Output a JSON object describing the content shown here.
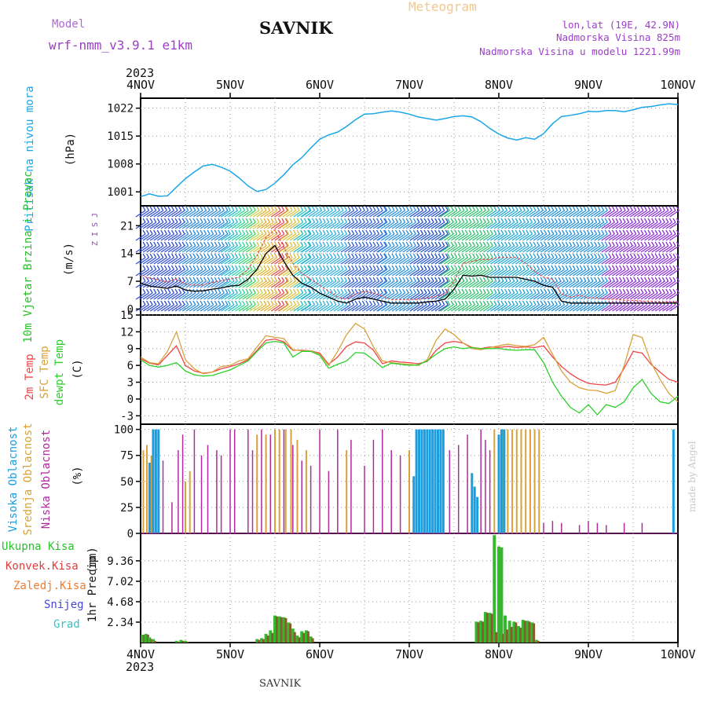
{
  "header": {
    "model_label": "Model",
    "model_name": "wrf-nmm_v3.9.1 e1km",
    "station": "SAVNIK",
    "product": "Meteogram",
    "coords": "lon,lat (19E, 42.9N)",
    "elevation": "Nadmorska Visina 825m",
    "model_elevation": "Nadmorska Visina u modelu 1221.99m",
    "footer_station": "SAVNIK",
    "credit": "made by Angel"
  },
  "colors": {
    "pressure": "#1aa7e8",
    "temp2m": "#ef4444",
    "sfc_temp": "#d9a13a",
    "dewpt": "#2bd12b",
    "cloud_high": "#1b9ee0",
    "cloud_mid": "#d9a13a",
    "cloud_low": "#b12aa0",
    "precip_total": "#35b72e",
    "precip_conv": "#e23d3d",
    "precip_strat": "#ee7b2f",
    "snow": "#4747d8",
    "hail": "#33c4c4",
    "wind_speed_line": "#000000",
    "wind_gust": "#e05050"
  },
  "time_axis": {
    "year": "2023",
    "days": [
      "4NOV",
      "5NOV",
      "6NOV",
      "7NOV",
      "8NOV",
      "9NOV",
      "10NOV"
    ]
  },
  "chart_data": [
    {
      "type": "line",
      "id": "pressure",
      "ylabel": "Pritisak na nivou mora",
      "unit": "(hPa)",
      "yticks": [
        1001,
        1008,
        1015,
        1022
      ],
      "ylim": [
        997.5,
        1024.5
      ],
      "x": [
        0,
        0.1,
        0.2,
        0.3,
        0.4,
        0.5,
        0.6,
        0.7,
        0.8,
        0.9,
        1.0,
        1.1,
        1.2,
        1.3,
        1.4,
        1.5,
        1.6,
        1.7,
        1.8,
        1.9,
        2.0,
        2.1,
        2.2,
        2.3,
        2.4,
        2.5,
        2.6,
        2.7,
        2.8,
        2.9,
        3.0,
        3.1,
        3.2,
        3.3,
        3.4,
        3.5,
        3.6,
        3.7,
        3.8,
        3.9,
        4.0,
        4.1,
        4.2,
        4.3,
        4.4,
        4.5,
        4.6,
        4.7,
        4.8,
        4.9,
        5.0,
        5.1,
        5.2,
        5.3,
        5.4,
        5.5,
        5.6,
        5.7,
        5.8,
        5.9,
        6.0
      ],
      "values": [
        999.8,
        1000.5,
        999.9,
        1000.0,
        1002.2,
        1004.3,
        1006.0,
        1007.5,
        1007.9,
        1007.2,
        1006.2,
        1004.5,
        1002.5,
        1001.1,
        1001.6,
        1003.2,
        1005.3,
        1007.8,
        1009.6,
        1012.0,
        1014.2,
        1015.3,
        1016.0,
        1017.4,
        1019.1,
        1020.5,
        1020.6,
        1021.0,
        1021.3,
        1021.0,
        1020.5,
        1019.8,
        1019.4,
        1019.0,
        1019.4,
        1019.9,
        1020.1,
        1019.8,
        1018.6,
        1016.9,
        1015.5,
        1014.5,
        1014.0,
        1014.6,
        1014.2,
        1015.6,
        1018.1,
        1019.9,
        1020.2,
        1020.6,
        1021.2,
        1021.1,
        1021.4,
        1021.4,
        1021.1,
        1021.6,
        1022.2,
        1022.4,
        1022.8,
        1023.1,
        1022.9
      ]
    },
    {
      "type": "line",
      "id": "wind",
      "ylabel": "10m Vjetar Brzina i Pravac",
      "unit": "(m/s)",
      "direction_legend": "Z I S J",
      "yticks": [
        0,
        7,
        14,
        21
      ],
      "ylim": [
        -1.5,
        26
      ],
      "x": [
        0,
        0.1,
        0.2,
        0.3,
        0.4,
        0.5,
        0.6,
        0.7,
        0.8,
        0.9,
        1.0,
        1.1,
        1.2,
        1.3,
        1.4,
        1.5,
        1.6,
        1.7,
        1.8,
        1.9,
        2.0,
        2.1,
        2.2,
        2.3,
        2.4,
        2.5,
        2.6,
        2.7,
        2.8,
        2.9,
        3.0,
        3.1,
        3.2,
        3.3,
        3.4,
        3.5,
        3.6,
        3.7,
        3.8,
        3.9,
        4.0,
        4.1,
        4.2,
        4.3,
        4.4,
        4.5,
        4.6,
        4.7,
        4.8,
        4.9,
        5.0,
        5.1,
        5.2,
        5.3,
        5.4,
        5.5,
        5.6,
        5.7,
        5.8,
        5.9,
        6.0
      ],
      "speed": [
        6.5,
        5.8,
        5.5,
        5.2,
        5.8,
        4.8,
        4.5,
        4.6,
        5.0,
        5.3,
        5.8,
        6.0,
        7.5,
        10.0,
        14.0,
        16.0,
        12.0,
        8.5,
        6.5,
        5.5,
        4.0,
        3.0,
        2.0,
        1.5,
        2.5,
        3.0,
        2.5,
        2.0,
        1.5,
        1.5,
        1.5,
        1.5,
        1.8,
        2.0,
        2.5,
        5.0,
        8.5,
        8.3,
        8.5,
        8.0,
        8.0,
        8.0,
        8.0,
        7.5,
        7.0,
        6.0,
        5.5,
        2.0,
        1.5,
        1.5,
        1.5,
        1.5,
        1.5,
        1.5,
        1.5,
        1.5,
        1.5,
        1.5,
        1.5,
        1.5,
        1.5
      ],
      "gust": [
        8.5,
        7.8,
        7.4,
        6.8,
        7.6,
        6.3,
        6.0,
        6.1,
        6.7,
        7.1,
        7.6,
        8.0,
        10.0,
        13.5,
        18.0,
        20.0,
        15.5,
        11.5,
        9.0,
        7.5,
        6.0,
        4.5,
        3.0,
        2.5,
        3.8,
        4.5,
        4.0,
        3.2,
        2.4,
        2.4,
        2.4,
        2.4,
        2.8,
        3.2,
        3.8,
        7.0,
        11.5,
        12.0,
        12.5,
        12.5,
        13.0,
        13.0,
        13.0,
        11.5,
        9.5,
        8.0,
        7.5,
        3.8,
        3.0,
        3.5,
        2.8,
        2.8,
        2.5,
        2.5,
        2.2,
        2.2,
        2.0,
        2.0,
        1.8,
        1.8,
        1.8
      ]
    },
    {
      "type": "line",
      "id": "temperature",
      "ylabel": "2m Temp / SFC Temp / dewpt Temp",
      "unit": "(C)",
      "yticks": [
        -3,
        0,
        3,
        6,
        9,
        12,
        15
      ],
      "ylim": [
        -4.5,
        15
      ],
      "x": [
        0,
        0.1,
        0.2,
        0.3,
        0.4,
        0.5,
        0.6,
        0.7,
        0.8,
        0.9,
        1.0,
        1.1,
        1.2,
        1.3,
        1.4,
        1.5,
        1.6,
        1.7,
        1.8,
        1.9,
        2.0,
        2.1,
        2.2,
        2.3,
        2.4,
        2.5,
        2.6,
        2.7,
        2.8,
        2.9,
        3.0,
        3.1,
        3.2,
        3.3,
        3.4,
        3.5,
        3.6,
        3.7,
        3.8,
        3.9,
        4.0,
        4.1,
        4.2,
        4.3,
        4.4,
        4.5,
        4.6,
        4.7,
        4.8,
        4.9,
        5.0,
        5.1,
        5.2,
        5.3,
        5.4,
        5.5,
        5.6,
        5.7,
        5.8,
        5.9,
        6.0
      ],
      "series": [
        {
          "name": "2m Temp",
          "values": [
            7.2,
            6.4,
            6.1,
            7.8,
            9.5,
            6.0,
            5.0,
            4.6,
            4.8,
            5.4,
            5.8,
            6.3,
            7.0,
            8.7,
            10.5,
            10.7,
            10.2,
            8.7,
            8.7,
            8.6,
            8.2,
            6.2,
            7.5,
            9.4,
            10.2,
            10.0,
            8.7,
            6.3,
            6.8,
            6.6,
            6.5,
            6.3,
            6.7,
            8.7,
            10.0,
            10.3,
            10.0,
            9.2,
            9.0,
            9.3,
            9.2,
            9.4,
            9.2,
            9.3,
            9.2,
            9.5,
            7.5,
            5.8,
            4.5,
            3.5,
            2.8,
            2.6,
            2.5,
            3.0,
            5.5,
            8.5,
            8.2,
            6.2,
            4.8,
            3.5,
            3.0
          ]
        },
        {
          "name": "SFC Temp",
          "values": [
            7.5,
            6.5,
            6.3,
            8.5,
            12.0,
            7.0,
            5.4,
            4.5,
            4.8,
            5.8,
            6.0,
            6.8,
            7.2,
            9.3,
            11.3,
            11.0,
            10.8,
            8.8,
            8.6,
            8.6,
            8.0,
            6.0,
            8.5,
            11.5,
            13.5,
            12.5,
            9.3,
            6.8,
            6.5,
            6.3,
            6.2,
            6.0,
            7.0,
            10.5,
            12.5,
            11.5,
            10.0,
            9.0,
            8.8,
            9.2,
            9.5,
            9.8,
            9.5,
            9.4,
            9.7,
            11.0,
            8.0,
            5.0,
            3.0,
            2.0,
            1.6,
            1.5,
            1.0,
            1.5,
            6.0,
            11.5,
            11.0,
            6.5,
            3.5,
            1.0,
            -0.5
          ]
        },
        {
          "name": "dewpt Temp",
          "values": [
            7.0,
            6.0,
            5.7,
            6.0,
            6.5,
            5.0,
            4.3,
            4.1,
            4.2,
            4.7,
            5.2,
            6.0,
            6.8,
            8.5,
            10.0,
            10.3,
            10.0,
            7.5,
            8.5,
            8.5,
            7.8,
            5.5,
            6.2,
            6.8,
            8.3,
            8.2,
            7.0,
            5.6,
            6.4,
            6.2,
            6.0,
            6.1,
            6.8,
            8.0,
            9.0,
            9.3,
            9.0,
            9.2,
            9.0,
            9.0,
            9.0,
            8.8,
            8.7,
            8.8,
            8.8,
            6.5,
            3.0,
            0.5,
            -1.5,
            -2.5,
            -1.0,
            -2.8,
            -1.0,
            -1.5,
            -0.5,
            2.0,
            3.5,
            1.0,
            -0.5,
            -0.8,
            0.5
          ]
        }
      ]
    },
    {
      "type": "bar",
      "id": "cloud",
      "ylabel": "Visoka Oblacnost / Srednja Oblacnost / Niska Oblacnost",
      "unit": "(%)",
      "yticks": [
        0,
        25,
        50,
        75,
        100
      ],
      "ylim": [
        0,
        105
      ],
      "series": [
        {
          "name": "Visoka Oblacnost",
          "x": [
            0.1,
            0.14,
            0.17,
            0.2,
            3.05,
            3.08,
            3.11,
            3.14,
            3.17,
            3.2,
            3.23,
            3.26,
            3.29,
            3.32,
            3.35,
            3.38,
            3.7,
            3.73,
            3.76,
            4.0,
            4.03,
            4.06,
            5.95
          ],
          "values": [
            68,
            100,
            100,
            100,
            55,
            100,
            100,
            100,
            100,
            100,
            100,
            100,
            100,
            100,
            100,
            100,
            58,
            45,
            35,
            95,
            100,
            100,
            100
          ]
        },
        {
          "name": "Srednja Oblacnost",
          "x": [
            0.03,
            0.07,
            0.12,
            0.5,
            0.55,
            1.3,
            1.4,
            1.5,
            1.55,
            1.62,
            1.68,
            1.75,
            1.85,
            2.3,
            3.0,
            3.95,
            4.05,
            4.1,
            4.15,
            4.2,
            4.25,
            4.3,
            4.35,
            4.4,
            4.45
          ],
          "values": [
            80,
            85,
            75,
            50,
            60,
            95,
            95,
            100,
            100,
            100,
            100,
            90,
            80,
            80,
            80,
            100,
            100,
            100,
            100,
            100,
            100,
            100,
            100,
            100,
            100
          ]
        },
        {
          "name": "Niska Oblacnost",
          "x": [
            0.25,
            0.35,
            0.42,
            0.47,
            0.6,
            0.68,
            0.75,
            0.85,
            0.9,
            1.0,
            1.05,
            1.2,
            1.25,
            1.35,
            1.45,
            1.6,
            1.7,
            1.8,
            1.9,
            2.0,
            2.1,
            2.2,
            2.35,
            2.5,
            2.6,
            2.7,
            2.8,
            2.9,
            3.45,
            3.55,
            3.65,
            3.8,
            3.85,
            3.9,
            4.5,
            4.6,
            4.7,
            4.9,
            5.0,
            5.1,
            5.2,
            5.4,
            5.6
          ],
          "values": [
            70,
            30,
            80,
            95,
            100,
            75,
            85,
            80,
            75,
            100,
            100,
            100,
            80,
            100,
            95,
            100,
            85,
            70,
            65,
            100,
            60,
            100,
            90,
            65,
            90,
            100,
            80,
            75,
            80,
            85,
            95,
            100,
            90,
            80,
            10,
            12,
            10,
            8,
            12,
            10,
            8,
            10,
            10
          ]
        }
      ]
    },
    {
      "type": "bar",
      "id": "precip",
      "ylabel": "1hr Precip",
      "unit": "(mm)",
      "legend": [
        "Ukupna Kisa",
        "Konvek.Kisa",
        "Zaledj.Kisa",
        "Snijeg",
        "Grad"
      ],
      "yticks": [
        2.34,
        4.68,
        7.02,
        9.36
      ],
      "ylim": [
        0,
        12.5
      ],
      "x": [
        0.02,
        0.06,
        0.1,
        0.14,
        0.4,
        0.45,
        0.5,
        1.3,
        1.35,
        1.4,
        1.45,
        1.5,
        1.55,
        1.6,
        1.65,
        1.7,
        1.75,
        1.8,
        1.85,
        1.9,
        3.75,
        3.8,
        3.85,
        3.9,
        3.95,
        4.0,
        4.03,
        4.07,
        4.12,
        4.17,
        4.22,
        4.27,
        4.32,
        4.37,
        4.42
      ],
      "total": [
        0.9,
        1.0,
        0.6,
        0.4,
        0.2,
        0.3,
        0.2,
        0.4,
        0.5,
        1.0,
        1.4,
        3.1,
        3.0,
        2.9,
        2.3,
        1.6,
        0.8,
        1.3,
        1.4,
        0.7,
        2.4,
        2.5,
        3.5,
        3.4,
        12.3,
        11.0,
        10.9,
        3.1,
        2.5,
        2.4,
        1.9,
        2.6,
        2.5,
        2.3,
        0.3
      ],
      "convective": [
        0.9,
        0.9,
        0.4,
        0.2,
        0.1,
        0.2,
        0.1,
        0.3,
        0.4,
        0.8,
        1.1,
        3.0,
        2.9,
        2.8,
        2.2,
        1.2,
        0.6,
        1.1,
        1.3,
        0.5,
        2.3,
        2.4,
        3.4,
        3.3,
        1.2,
        1.0,
        1.0,
        1.5,
        1.8,
        2.3,
        1.7,
        2.5,
        2.4,
        2.2,
        0.2
      ]
    }
  ]
}
